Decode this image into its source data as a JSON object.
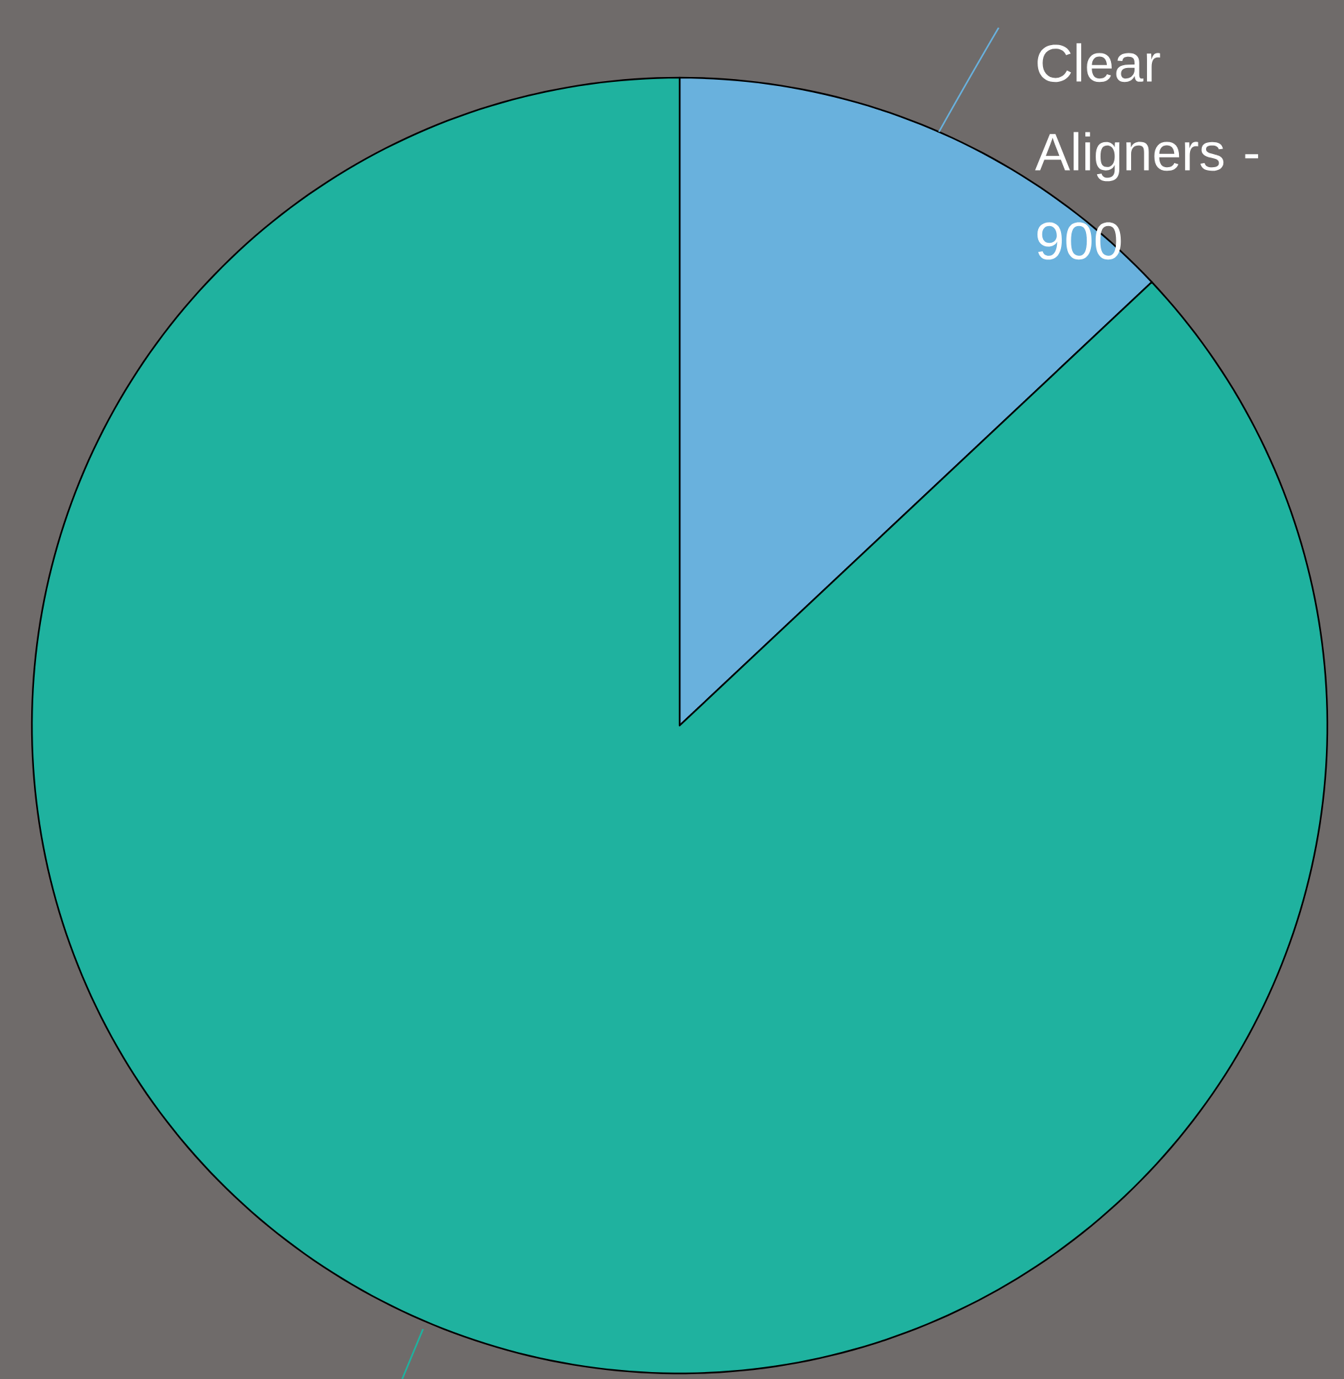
{
  "chart_data": {
    "type": "pie",
    "categories": [
      "Clear Aligners - 900",
      null
    ],
    "values": [
      13,
      87
    ],
    "colors": [
      "#69b1dd",
      "#1fb29f"
    ]
  }
}
